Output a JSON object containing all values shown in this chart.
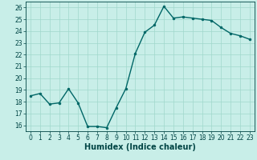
{
  "x": [
    0,
    1,
    2,
    3,
    4,
    5,
    6,
    7,
    8,
    9,
    10,
    11,
    12,
    13,
    14,
    15,
    16,
    17,
    18,
    19,
    20,
    21,
    22,
    23
  ],
  "y": [
    18.5,
    18.7,
    17.8,
    17.9,
    19.1,
    17.9,
    15.9,
    15.9,
    15.8,
    17.5,
    19.1,
    22.1,
    23.9,
    24.5,
    26.1,
    25.1,
    25.2,
    25.1,
    25.0,
    24.9,
    24.3,
    23.8,
    23.6,
    23.3
  ],
  "line_color": "#006666",
  "marker": "o",
  "marker_size": 2,
  "bg_color": "#c8eee8",
  "grid_color": "#a0d8cc",
  "xlabel": "Humidex (Indice chaleur)",
  "ylim": [
    15.5,
    26.5
  ],
  "xlim": [
    -0.5,
    23.5
  ],
  "yticks": [
    16,
    17,
    18,
    19,
    20,
    21,
    22,
    23,
    24,
    25,
    26
  ],
  "xticks": [
    0,
    1,
    2,
    3,
    4,
    5,
    6,
    7,
    8,
    9,
    10,
    11,
    12,
    13,
    14,
    15,
    16,
    17,
    18,
    19,
    20,
    21,
    22,
    23
  ],
  "tick_label_color": "#004444",
  "axis_color": "#004444",
  "xlabel_color": "#004444",
  "xlabel_fontsize": 7,
  "tick_fontsize": 5.5,
  "linewidth": 1.0
}
